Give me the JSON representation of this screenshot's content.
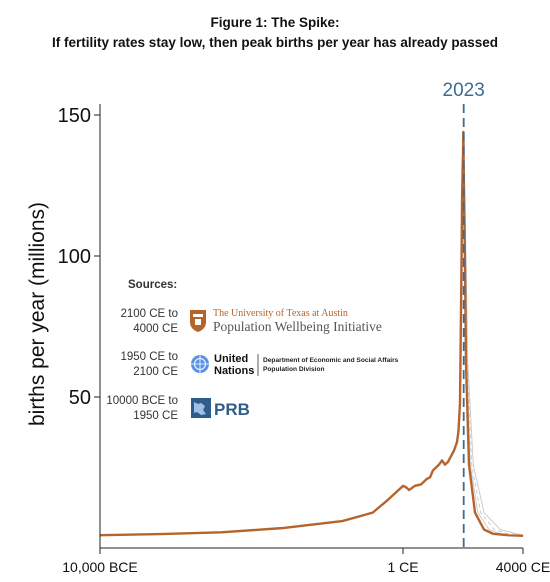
{
  "figure": {
    "title": "Figure 1: The Spike:",
    "subtitle": "If fertility rates stay low, then peak births per year has already passed"
  },
  "chart_data": {
    "type": "line",
    "ylabel": "births per year (millions)",
    "xlabel": "",
    "x_ticks": [
      "10,000 BCE",
      "1 CE",
      "4000 CE"
    ],
    "y_ticks": [
      50,
      100,
      150
    ],
    "ylim": [
      0,
      152
    ],
    "grid": false,
    "marker": {
      "label": "2023",
      "color": "#3d6b95"
    },
    "colors": {
      "main": "#b5652c",
      "alt": "#cccccc",
      "axis": "#222222"
    },
    "series": [
      {
        "x": [
          "10,000 BCE",
          "8000 BCE",
          "6000 BCE",
          "4000 BCE",
          "2000 BCE",
          "1000 BCE",
          "500 BCE",
          "200 BCE",
          "1 CE",
          "100 CE",
          "200 CE",
          "400 CE",
          "600 CE",
          "700 CE",
          "800 CE",
          "900 CE",
          "1000 CE",
          "1100 CE",
          "1200 CE",
          "1300 CE",
          "1400 CE",
          "1500 CE",
          "1600 CE",
          "1700 CE",
          "1800 CE",
          "1850 CE",
          "1900 CE",
          "1950 CE",
          "1960 CE",
          "1970 CE",
          "1990 CE",
          "2000 CE",
          "2012 CE",
          "2016 CE",
          "2020 CE",
          "2023 CE",
          "2030 CE",
          "2050 CE",
          "2070 CE",
          "2100 CE",
          "2200 CE",
          "2400 CE",
          "2700 CE",
          "3000 CE",
          "3500 CE",
          "4000 CE"
        ],
        "values": [
          1,
          1.4,
          2,
          3.5,
          6,
          9,
          13.5,
          16.5,
          18.5,
          18,
          17,
          18.5,
          19,
          20,
          21,
          21.5,
          24,
          25,
          26,
          27.5,
          26,
          27,
          29,
          31,
          34,
          38,
          48,
          97,
          108,
          121,
          132,
          136,
          144,
          141,
          133,
          132,
          126,
          112,
          94,
          62,
          26,
          9,
          3,
          1.5,
          1,
          0.8
        ]
      }
    ]
  },
  "sources": {
    "heading": "Sources:",
    "items": [
      {
        "range": [
          "2100 CE to",
          "4000 CE"
        ],
        "org_line1": "The University of Texas at Austin",
        "org_line2": "Population Wellbeing Initiative",
        "icon": "ut-austin-seal-icon"
      },
      {
        "range": [
          "1950 CE to",
          "2100 CE"
        ],
        "org_line1": "United",
        "org_line2": "Nations",
        "dept_line1": "Department of Economic and Social Affairs",
        "dept_line2": "Population Division",
        "icon": "un-emblem-icon"
      },
      {
        "range": [
          "10000 BCE to",
          "1950 CE"
        ],
        "org_line1": "PRB",
        "icon": "prb-logo-icon"
      }
    ]
  }
}
